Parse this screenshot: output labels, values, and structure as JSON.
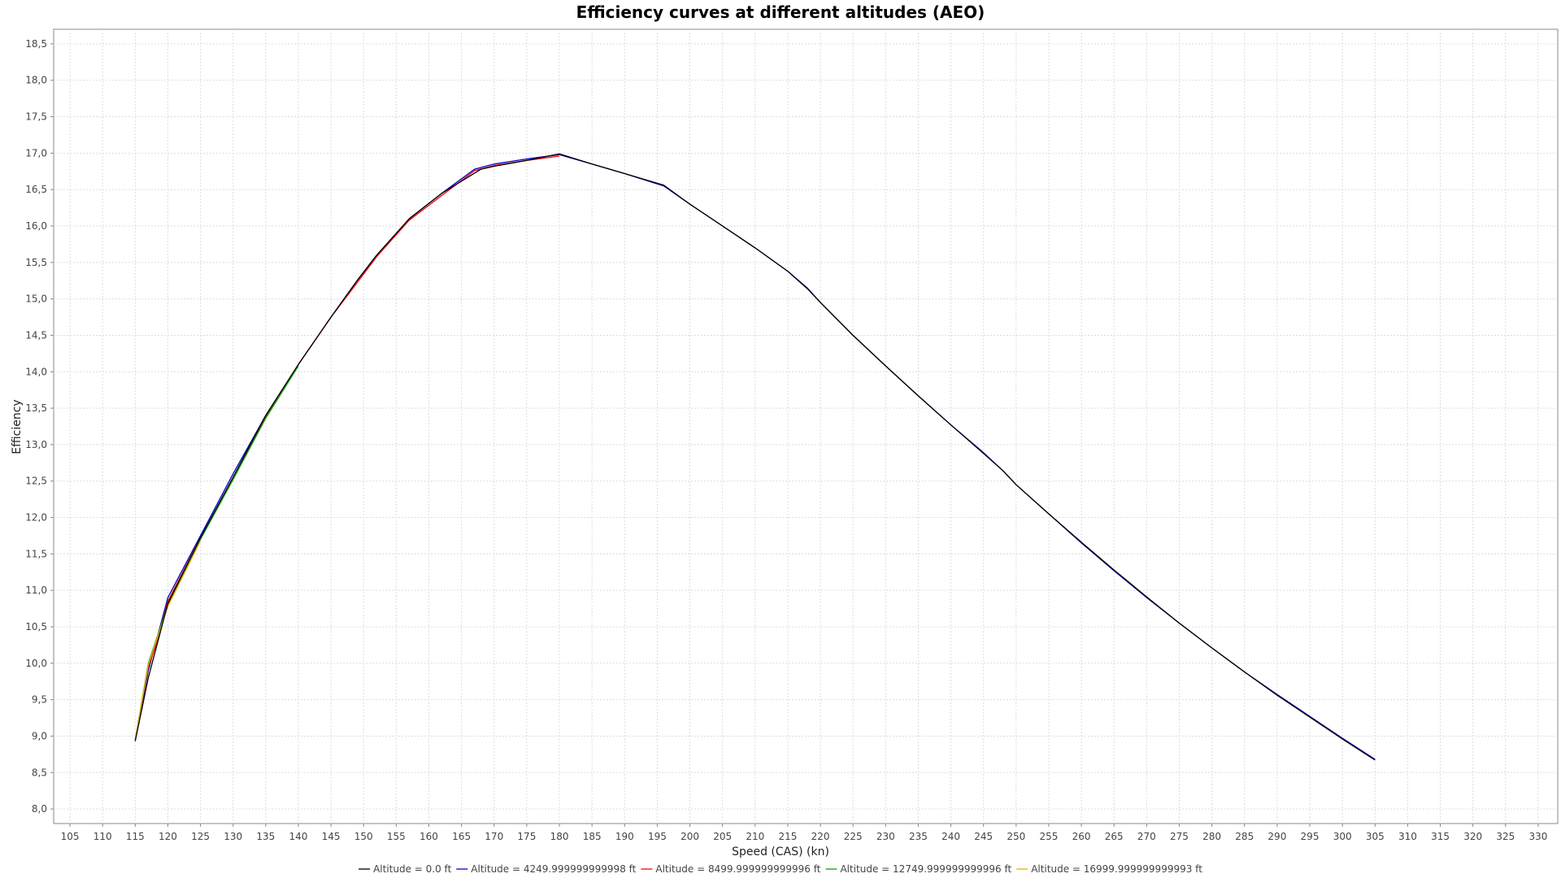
{
  "chart_data": {
    "type": "line",
    "title": "Efficiency curves at different altitudes (AEO)",
    "xlabel": "Speed (CAS) (kn)",
    "ylabel": "Efficiency",
    "xlim": [
      102.5,
      333
    ],
    "ylim": [
      7.8,
      18.7
    ],
    "x_ticks": [
      105,
      110,
      115,
      120,
      125,
      130,
      135,
      140,
      145,
      150,
      155,
      160,
      165,
      170,
      175,
      180,
      185,
      190,
      195,
      200,
      205,
      210,
      215,
      220,
      225,
      230,
      235,
      240,
      245,
      250,
      255,
      260,
      265,
      270,
      275,
      280,
      285,
      290,
      295,
      300,
      305,
      310,
      315,
      320,
      325,
      330
    ],
    "x_tick_labels": [
      "105",
      "110",
      "115",
      "120",
      "125",
      "130",
      "135",
      "140",
      "145",
      "150",
      "155",
      "160",
      "165",
      "170",
      "175",
      "180",
      "185",
      "190",
      "195",
      "200",
      "205",
      "210",
      "215",
      "220",
      "225",
      "230",
      "235",
      "240",
      "245",
      "250",
      "255",
      "260",
      "265",
      "270",
      "275",
      "280",
      "285",
      "290",
      "295",
      "300",
      "305",
      "310",
      "315",
      "320",
      "325",
      "330"
    ],
    "y_ticks": [
      8.0,
      8.5,
      9.0,
      9.5,
      10.0,
      10.5,
      11.0,
      11.5,
      12.0,
      12.5,
      13.0,
      13.5,
      14.0,
      14.5,
      15.0,
      15.5,
      16.0,
      16.5,
      17.0,
      17.5,
      18.0,
      18.5
    ],
    "y_tick_labels": [
      "8,0",
      "8,5",
      "9,0",
      "9,5",
      "10,0",
      "10,5",
      "11,0",
      "11,5",
      "12,0",
      "12,5",
      "13,0",
      "13,5",
      "14,0",
      "14,5",
      "15,0",
      "15,5",
      "16,0",
      "16,5",
      "17,0",
      "17,5",
      "18,0",
      "18,5"
    ],
    "grid": true,
    "legend_position": "bottom",
    "series": [
      {
        "name": "Altitude = 4249.999999999998 ft",
        "color": "#0000cc",
        "x": [
          115,
          117,
          120,
          125,
          130,
          135,
          140,
          145,
          149,
          152,
          157,
          162,
          167,
          170,
          175,
          180,
          185,
          190,
          196,
          200,
          205,
          210,
          215,
          218,
          220,
          225,
          230,
          235,
          240,
          245,
          248,
          250,
          255,
          260,
          265,
          270,
          275,
          280,
          285,
          290,
          295,
          300,
          305
        ],
        "y": [
          8.95,
          9.9,
          10.9,
          11.75,
          12.6,
          13.4,
          14.1,
          14.75,
          15.25,
          15.6,
          16.1,
          16.45,
          16.78,
          16.85,
          16.92,
          16.98,
          16.85,
          16.72,
          16.55,
          16.3,
          16.0,
          15.7,
          15.38,
          15.15,
          14.95,
          14.5,
          14.08,
          13.67,
          13.27,
          12.89,
          12.64,
          12.45,
          12.05,
          11.65,
          11.27,
          10.9,
          10.55,
          10.21,
          9.88,
          9.57,
          9.27,
          8.97,
          8.68
        ]
      },
      {
        "name": "Altitude = 8499.999999999996 ft",
        "color": "#ff0000",
        "x": [
          115,
          117,
          118,
          120,
          125,
          130,
          135,
          140,
          145,
          149,
          152,
          157,
          162,
          167,
          170,
          175,
          180
        ],
        "y": [
          8.95,
          9.95,
          10.2,
          10.85,
          11.72,
          12.55,
          13.38,
          14.1,
          14.75,
          15.22,
          15.58,
          16.08,
          16.42,
          16.76,
          16.83,
          16.9,
          16.96
        ]
      },
      {
        "name": "Altitude = 12749.999999999996 ft",
        "color": "#00aa00",
        "x": [
          115,
          117,
          120,
          125,
          130,
          135,
          140
        ],
        "y": [
          8.95,
          10.0,
          10.8,
          11.7,
          12.52,
          13.36,
          14.08
        ]
      },
      {
        "name": "Altitude = 16999.999999999993 ft",
        "color": "#e8b000",
        "x": [
          115,
          117,
          120,
          125
        ],
        "y": [
          8.95,
          9.98,
          10.78,
          11.68
        ]
      },
      {
        "name": "Altitude = 0.0 ft",
        "color": "#000000",
        "x": [
          115,
          117,
          120,
          125,
          130,
          135,
          140,
          145,
          149,
          152,
          157,
          162,
          168,
          170,
          175,
          180,
          185,
          190,
          196,
          200,
          205,
          210,
          215,
          218,
          220,
          225,
          230,
          235,
          240,
          245,
          248,
          250,
          255,
          260,
          265,
          270,
          275,
          280,
          285,
          290,
          295,
          300,
          305
        ],
        "y": [
          8.93,
          9.8,
          10.82,
          11.72,
          12.55,
          13.4,
          14.1,
          14.75,
          15.25,
          15.6,
          16.1,
          16.45,
          16.78,
          16.82,
          16.9,
          16.99,
          16.85,
          16.72,
          16.56,
          16.3,
          16.0,
          15.7,
          15.38,
          15.14,
          14.95,
          14.5,
          14.08,
          13.67,
          13.27,
          12.88,
          12.64,
          12.45,
          12.05,
          11.66,
          11.28,
          10.91,
          10.55,
          10.21,
          9.88,
          9.56,
          9.26,
          8.96,
          8.67
        ]
      }
    ],
    "legend_order": [
      4,
      0,
      1,
      2,
      3
    ]
  }
}
